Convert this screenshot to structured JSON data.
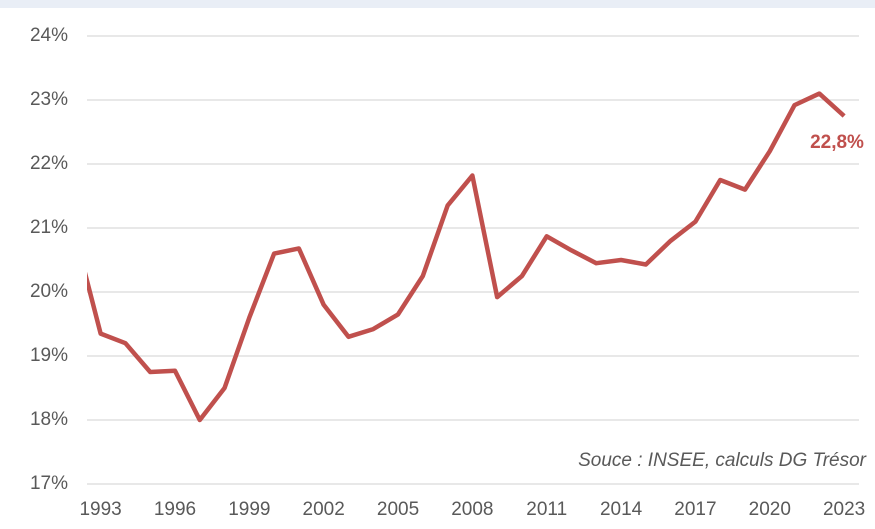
{
  "chart_data": {
    "type": "line",
    "x": [
      1992,
      1993,
      1994,
      1995,
      1996,
      1997,
      1998,
      1999,
      2000,
      2001,
      2002,
      2003,
      2004,
      2005,
      2006,
      2007,
      2008,
      2009,
      2010,
      2011,
      2012,
      2013,
      2014,
      2015,
      2016,
      2017,
      2018,
      2019,
      2020,
      2021,
      2022,
      2023
    ],
    "series": [
      {
        "color": "#c0504d",
        "values": [
          20.85,
          19.35,
          19.2,
          18.75,
          18.77,
          18.0,
          18.5,
          19.6,
          20.6,
          20.68,
          19.8,
          19.3,
          19.42,
          19.65,
          20.25,
          21.35,
          21.82,
          19.92,
          20.25,
          20.87,
          20.65,
          20.45,
          20.5,
          20.43,
          20.8,
          21.1,
          21.75,
          21.6,
          22.2,
          22.92,
          23.1,
          22.75
        ]
      }
    ],
    "last_value_label": "22,8%",
    "annotation": "Souce : INSEE, calculs DG Trésor",
    "xlim": [
      1992.45,
      2023.6
    ],
    "xticks": [
      1993,
      1996,
      1999,
      2002,
      2005,
      2008,
      2011,
      2014,
      2017,
      2020,
      2023
    ],
    "ylim": [
      17,
      24
    ],
    "yticks": [
      {
        "value": 17,
        "label": "17%"
      },
      {
        "value": 18,
        "label": "18%"
      },
      {
        "value": 19,
        "label": "19%"
      },
      {
        "value": 20,
        "label": "20%"
      },
      {
        "value": 21,
        "label": "21%"
      },
      {
        "value": 22,
        "label": "22%"
      },
      {
        "value": 23,
        "label": "23%"
      },
      {
        "value": 24,
        "label": "24%"
      }
    ],
    "grid": true
  }
}
